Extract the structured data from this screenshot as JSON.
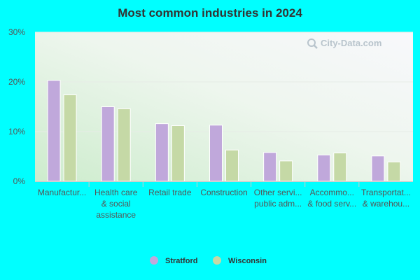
{
  "chart_data": {
    "type": "bar",
    "title": "Most common industries in 2024",
    "categories": [
      [
        "Manufactur..."
      ],
      [
        "Health care",
        "& social",
        "assistance"
      ],
      [
        "Retail trade"
      ],
      [
        "Construction"
      ],
      [
        "Other servi...",
        "public adm..."
      ],
      [
        "Accommo...",
        "& food serv..."
      ],
      [
        "Transportat...",
        "& warehou..."
      ]
    ],
    "series": [
      {
        "name": "Stratford",
        "color": "#c0a8db",
        "values": [
          20.3,
          15.0,
          11.6,
          11.3,
          5.8,
          5.3,
          5.1
        ]
      },
      {
        "name": "Wisconsin",
        "color": "#c5d9a6",
        "values": [
          17.4,
          14.6,
          11.2,
          6.3,
          4.1,
          5.7,
          3.9
        ]
      }
    ],
    "yticks": [
      "0%",
      "10%",
      "20%",
      "30%"
    ],
    "ylim": [
      0,
      30
    ],
    "grid": true,
    "legend_position": "bottom-center",
    "watermark_icon": "magnifier-logo-icon",
    "watermark_text": "City-Data.com"
  }
}
